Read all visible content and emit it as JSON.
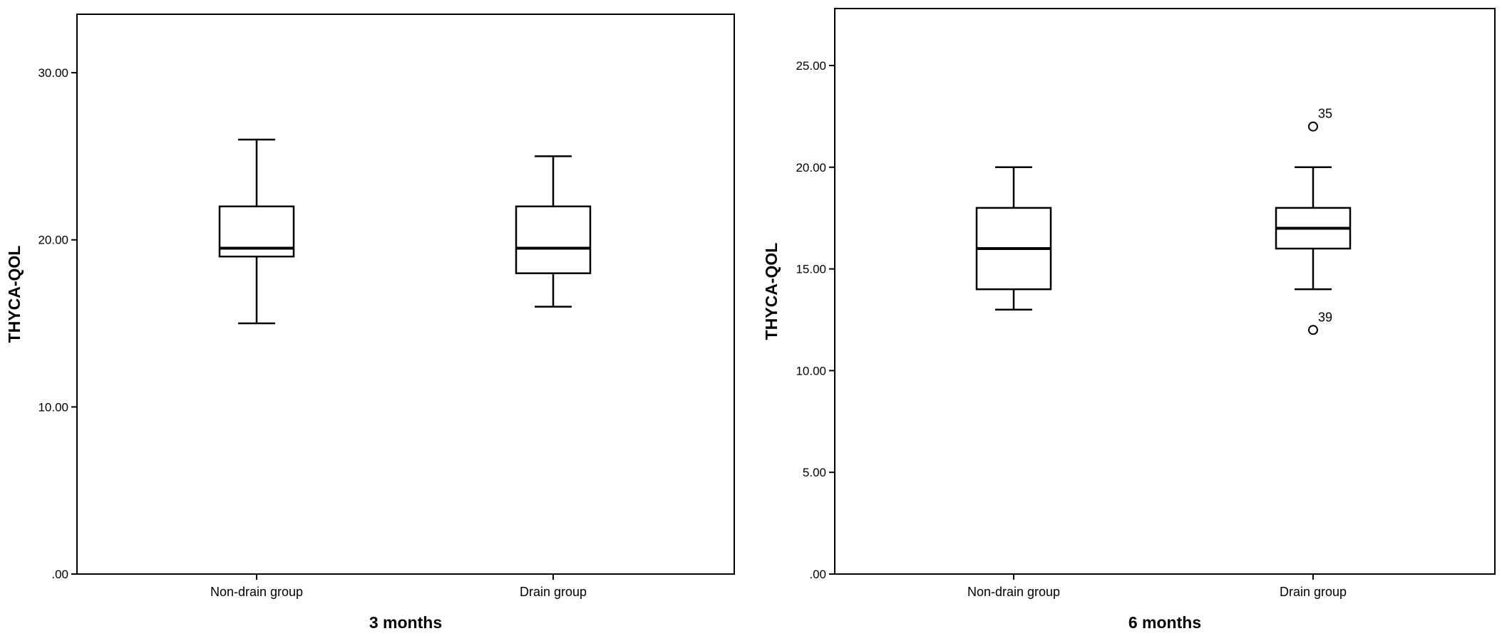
{
  "chart_data": [
    {
      "type": "boxplot",
      "xlabel": "3 months",
      "ylabel": "THYCA-QOL",
      "ylim": [
        0,
        33.5
      ],
      "yticks": [
        0,
        10,
        20,
        30
      ],
      "ytick_labels": [
        ".00",
        "10.00",
        "20.00",
        "30.00"
      ],
      "grid": false,
      "categories": [
        "Non-drain group",
        "Drain group"
      ],
      "boxes": [
        {
          "category": "Non-drain group",
          "min": 15,
          "q1": 19,
          "median": 19.5,
          "q3": 22,
          "max": 26,
          "outliers": []
        },
        {
          "category": "Drain group",
          "min": 16,
          "q1": 18,
          "median": 19.5,
          "q3": 22,
          "max": 25,
          "outliers": []
        }
      ]
    },
    {
      "type": "boxplot",
      "xlabel": "6 months",
      "ylabel": "THYCA-QOL",
      "ylim": [
        0,
        27.8
      ],
      "yticks": [
        0,
        5,
        10,
        15,
        20,
        25
      ],
      "ytick_labels": [
        ".00",
        "5.00",
        "10.00",
        "15.00",
        "20.00",
        "25.00"
      ],
      "grid": false,
      "categories": [
        "Non-drain group",
        "Drain group"
      ],
      "boxes": [
        {
          "category": "Non-drain group",
          "min": 13,
          "q1": 14,
          "median": 16,
          "q3": 18,
          "max": 20,
          "outliers": []
        },
        {
          "category": "Drain group",
          "min": 14,
          "q1": 16,
          "median": 17,
          "q3": 18,
          "max": 20,
          "outliers": [
            {
              "value": 22,
              "label": "35"
            },
            {
              "value": 12,
              "label": "39"
            }
          ]
        }
      ]
    }
  ]
}
